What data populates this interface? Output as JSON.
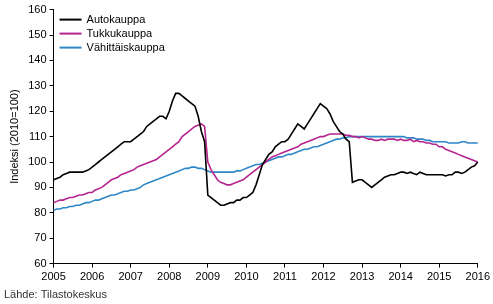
{
  "chart_data": {
    "type": "line",
    "y_label": "Indeksi (2010=100)",
    "source": "Lähde: Tilastokeskus",
    "ylim": [
      60,
      160
    ],
    "yticks": [
      60,
      70,
      80,
      90,
      100,
      110,
      120,
      130,
      140,
      150,
      160
    ],
    "grid": false,
    "legend": "upper left",
    "categories": [
      "2005",
      null,
      null,
      null,
      null,
      null,
      null,
      null,
      null,
      null,
      null,
      null,
      "2006",
      null,
      null,
      null,
      null,
      null,
      null,
      null,
      null,
      null,
      null,
      null,
      "2007",
      null,
      null,
      null,
      null,
      null,
      null,
      null,
      null,
      null,
      null,
      null,
      "2008",
      null,
      null,
      null,
      null,
      null,
      null,
      null,
      null,
      null,
      null,
      null,
      "2009",
      null,
      null,
      null,
      null,
      null,
      null,
      null,
      null,
      null,
      null,
      null,
      "2010",
      null,
      null,
      null,
      null,
      null,
      null,
      null,
      null,
      null,
      null,
      null,
      "2011",
      null,
      null,
      null,
      null,
      null,
      null,
      null,
      null,
      null,
      null,
      null,
      "2012",
      null,
      null,
      null,
      null,
      null,
      null,
      null,
      null,
      null,
      null,
      null,
      "2013",
      null,
      null,
      null,
      null,
      null,
      null,
      null,
      null,
      null,
      null,
      null,
      "2014",
      null,
      null,
      null,
      null,
      null,
      null,
      null,
      null,
      null,
      null,
      null,
      "2015",
      null,
      null,
      null,
      null,
      null,
      null,
      null,
      null,
      null,
      null,
      null,
      "2016"
    ],
    "series": [
      {
        "name": "Autokauppa",
        "color": "#000000",
        "values": [
          93,
          93.5,
          94,
          95,
          95.5,
          96,
          96,
          96,
          96,
          96,
          96.5,
          97,
          98,
          99,
          100,
          101,
          102,
          103,
          104,
          105,
          106,
          107,
          108,
          108,
          108,
          109,
          110,
          111,
          112,
          114,
          115,
          116,
          117,
          118,
          118,
          117,
          120,
          124,
          127,
          127,
          126,
          125,
          124,
          123,
          122,
          118,
          112,
          108,
          87,
          86,
          85,
          84,
          83,
          83,
          83.5,
          84,
          84,
          85,
          85,
          86,
          86,
          87,
          88,
          91,
          95,
          99,
          101,
          103,
          104,
          106,
          107,
          108,
          108,
          109,
          111,
          113,
          115,
          114,
          113,
          115,
          117,
          119,
          121,
          123,
          122,
          121,
          119,
          116,
          114,
          112,
          111,
          109,
          108,
          92,
          92.5,
          93,
          93,
          92,
          91,
          90,
          91,
          92,
          93,
          94,
          94.5,
          95,
          95,
          95.5,
          96,
          96,
          95.5,
          96,
          95.5,
          95,
          96,
          95.5,
          95,
          95,
          95,
          95,
          95,
          95,
          94.5,
          95,
          95,
          96,
          96,
          95.5,
          96,
          97,
          98,
          98.5,
          100
        ]
      },
      {
        "name": "Tukkukauppa",
        "color": "#b5248f",
        "values": [
          84,
          84.5,
          85,
          85,
          85.5,
          86,
          86,
          86.5,
          87,
          87,
          87.5,
          88,
          88,
          89,
          89.5,
          90,
          91,
          92,
          93,
          93.5,
          94,
          95,
          95.5,
          96,
          96.5,
          97,
          98,
          98.5,
          99,
          99.5,
          100,
          100.5,
          101,
          102,
          103,
          104,
          105,
          106,
          107,
          108,
          110,
          111,
          112,
          113,
          114,
          114.5,
          115,
          114,
          100,
          97,
          95,
          93,
          92,
          91.5,
          91,
          91,
          91.5,
          92,
          92.5,
          93,
          94,
          95,
          96,
          97,
          98,
          99,
          100,
          101,
          102,
          102.5,
          103,
          103.5,
          104,
          104.5,
          105,
          105.5,
          106,
          107,
          107.5,
          108,
          108.5,
          109,
          109.5,
          110,
          110,
          110.5,
          111,
          111,
          111,
          111,
          111,
          110.5,
          110.5,
          110,
          110,
          109.5,
          110,
          109.5,
          109,
          109,
          108.5,
          108.5,
          109,
          108.5,
          109,
          109,
          109,
          108.5,
          109,
          108.5,
          108.5,
          109,
          108,
          108.5,
          108,
          108,
          107.5,
          107.5,
          107,
          107,
          106,
          106,
          105,
          104.5,
          104,
          103.5,
          103,
          102.5,
          102,
          101.5,
          101,
          100.5,
          100
        ]
      },
      {
        "name": "Vähittäiskauppa",
        "color": "#2f87c8",
        "values": [
          81,
          81.5,
          81.5,
          82,
          82,
          82.5,
          82.5,
          83,
          83,
          83.5,
          84,
          84,
          84.5,
          85,
          85,
          85.5,
          86,
          86.5,
          87,
          87,
          87.5,
          88,
          88.5,
          88.5,
          89,
          89,
          89.5,
          90,
          91,
          91.5,
          92,
          92.5,
          93,
          93.5,
          94,
          94.5,
          95,
          95.5,
          96,
          96.5,
          97,
          97.5,
          97.5,
          98,
          98,
          97.5,
          97.5,
          97,
          96.5,
          96,
          96,
          96,
          96,
          96,
          96,
          96,
          96,
          96.5,
          96.5,
          97,
          97.5,
          98,
          98.5,
          99,
          99,
          99.5,
          100,
          100.5,
          101,
          101.5,
          102,
          102,
          102.5,
          103,
          103,
          103.5,
          104,
          104.5,
          105,
          105,
          105.5,
          106,
          106,
          106.5,
          107,
          107.5,
          108,
          108.5,
          109,
          109,
          109.5,
          109.5,
          110,
          110,
          110,
          110,
          110,
          110,
          110,
          110,
          110,
          110,
          110,
          110,
          110,
          110,
          110,
          110,
          110,
          110,
          109.5,
          109.5,
          109.5,
          109,
          109,
          109,
          108.5,
          108.5,
          108,
          108,
          108,
          108,
          108,
          107.5,
          107.5,
          107.5,
          107.5,
          108,
          108,
          107.5,
          107.5,
          107.5,
          107.5
        ]
      }
    ]
  }
}
